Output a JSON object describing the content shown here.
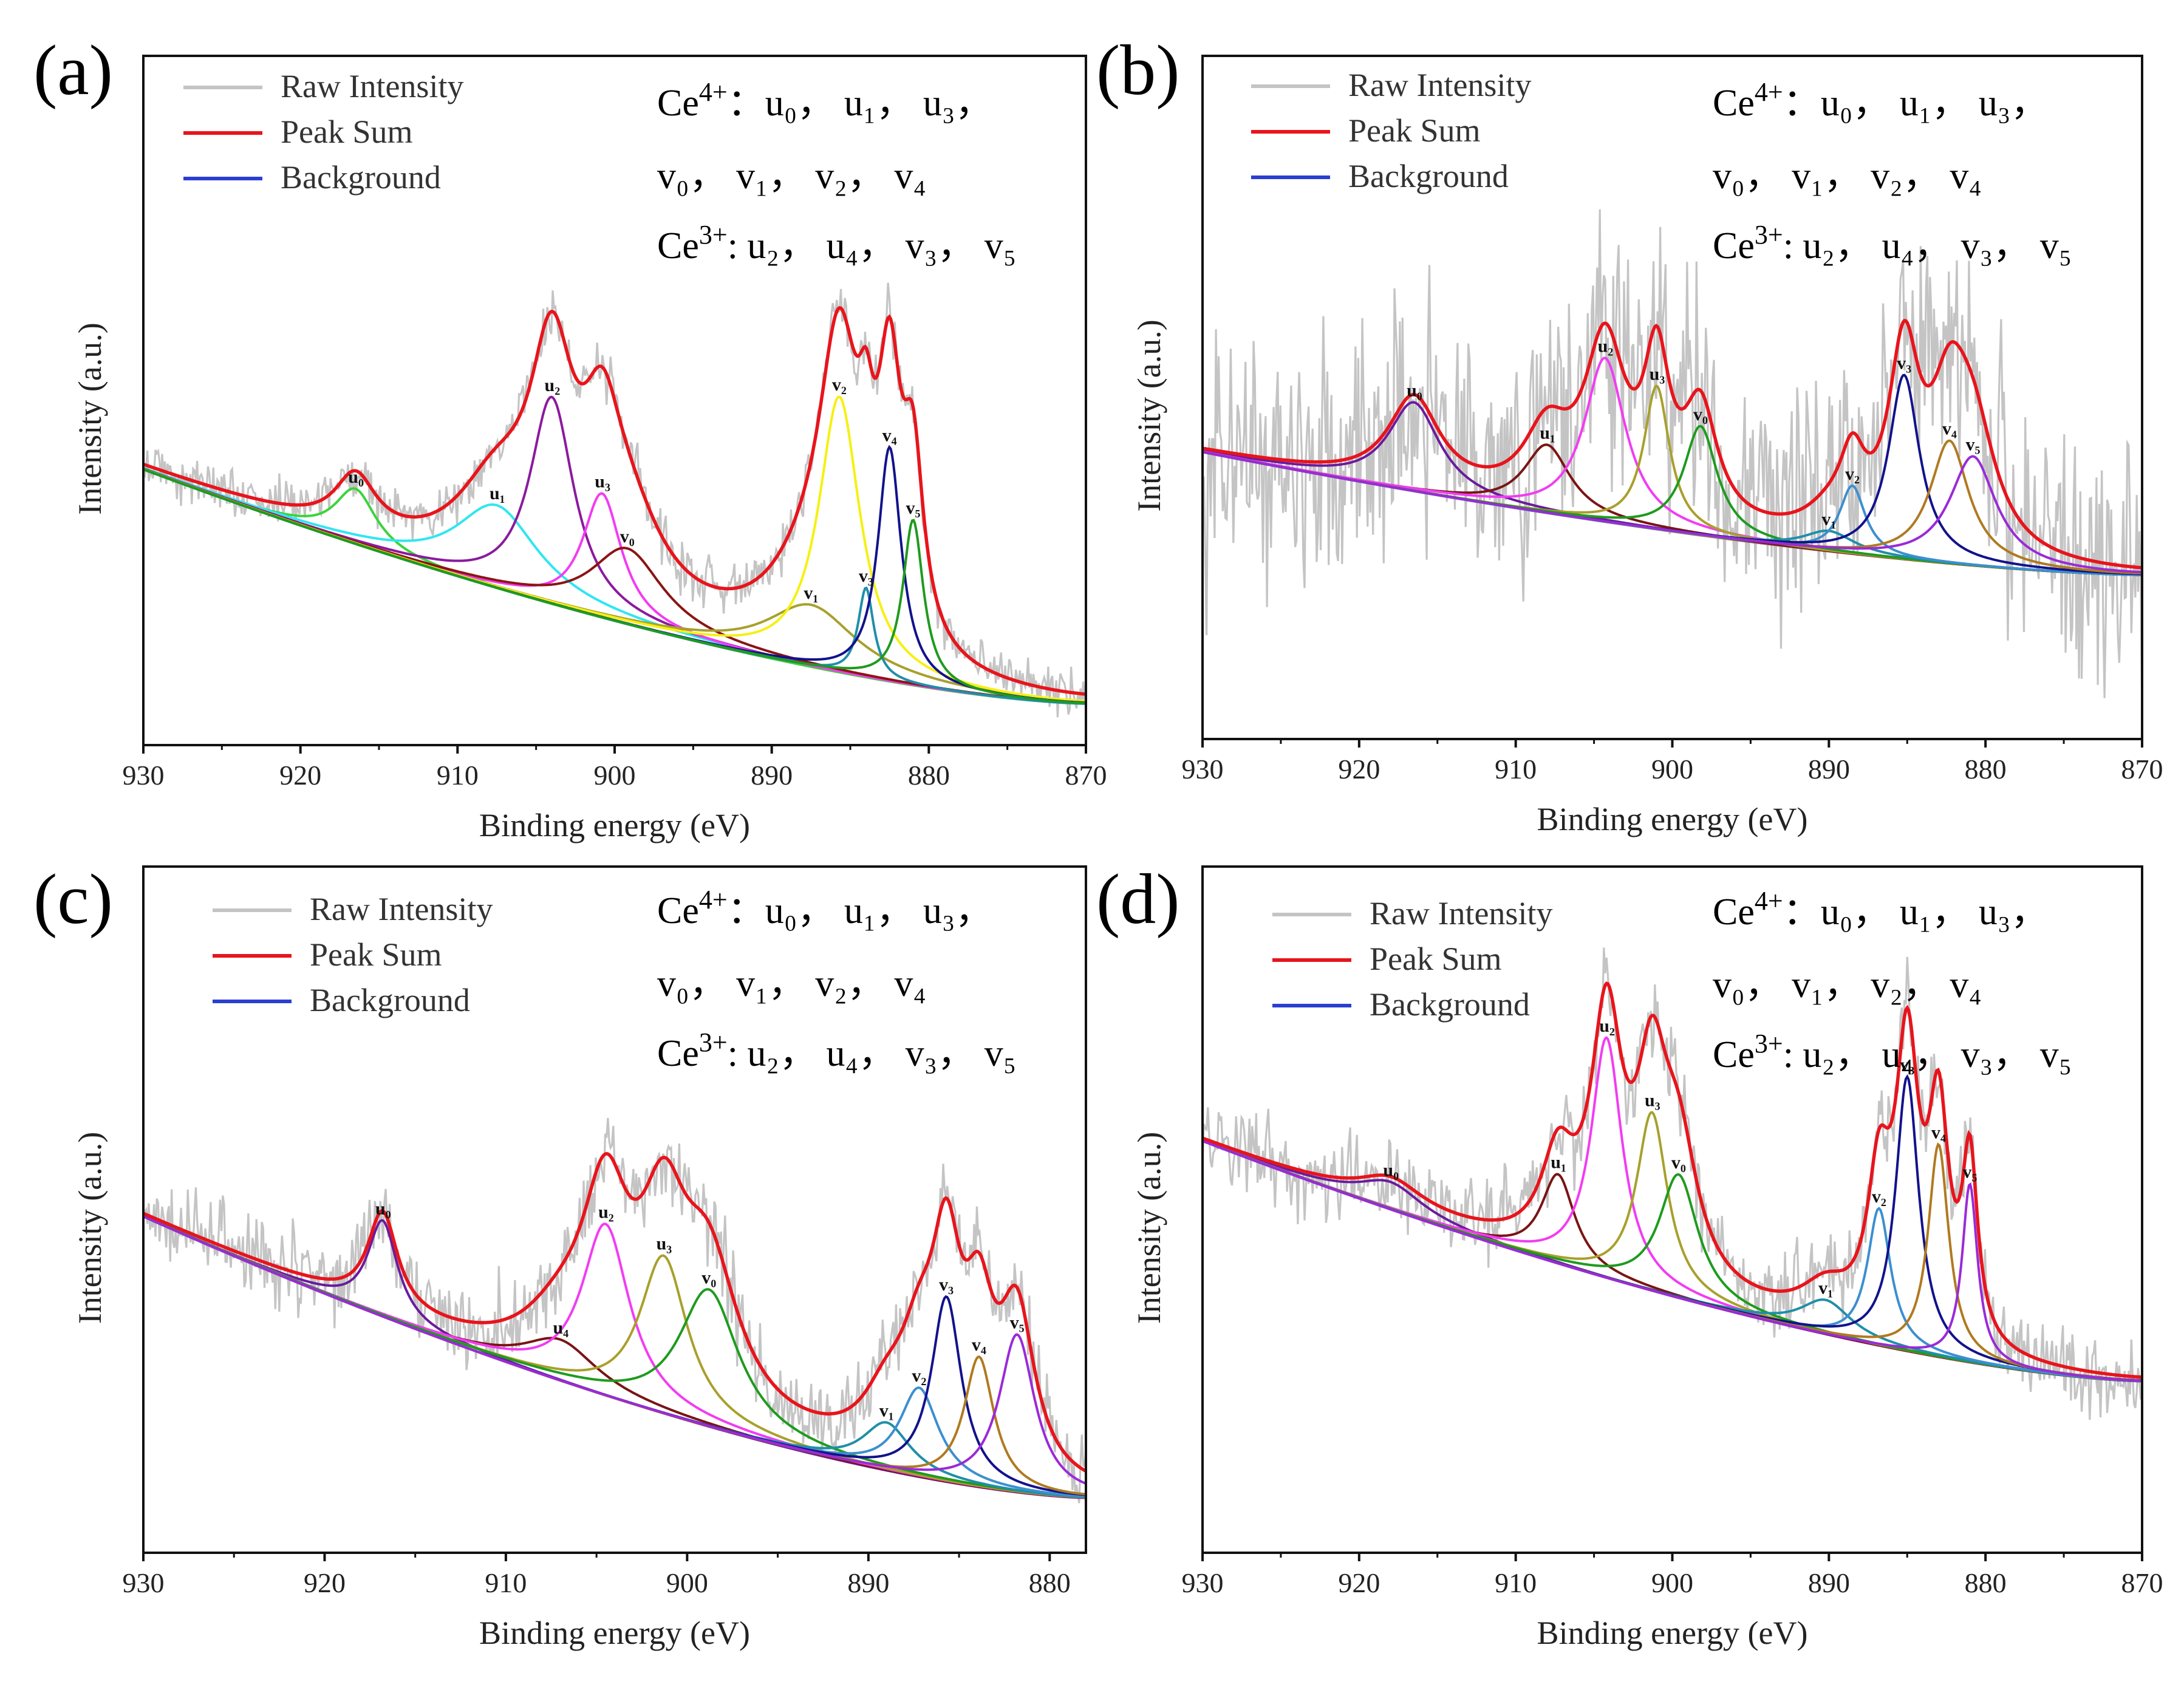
{
  "colors": {
    "raw": "#c4c4c4",
    "peak_sum": "#e8141c",
    "background_legend": "#2a3fd0",
    "background_line": "#a27a3c"
  },
  "chart_data": [
    {
      "type": "line",
      "panel": "(a)",
      "xlabel": "Binding energy (eV)",
      "ylabel": "Intensity (a.u.)",
      "xlim": [
        930,
        870
      ],
      "x_ticks": [
        930,
        920,
        910,
        900,
        890,
        880,
        870
      ],
      "ylim": [
        0,
        1
      ],
      "legend": [
        "Raw Intensity",
        "Peak Sum",
        "Background"
      ],
      "annotation": {
        "ce4_prefix": "Ce",
        "ce4_sup": "4+",
        "ce4_line1": "：u₀， u₁， u₃，",
        "ce4_line2": "v₀， v₁， v₂， v₄",
        "ce3_prefix": "Ce",
        "ce3_sup": "3+",
        "ce3_line": ": u₂， u₄， v₃， v₅"
      },
      "background": {
        "start": 0.4,
        "end": 0.06
      },
      "peaks": [
        {
          "label": "u₀",
          "center": 916.5,
          "height": 0.08,
          "width": 1.6,
          "color": "#3cd33c"
        },
        {
          "label": "u₁",
          "center": 907.5,
          "height": 0.12,
          "width": 3.2,
          "color": "#30e6f0"
        },
        {
          "label": "u₂",
          "center": 904.0,
          "height": 0.3,
          "width": 1.7,
          "color": "#8b1a9e"
        },
        {
          "label": "u₃",
          "center": 900.8,
          "height": 0.18,
          "width": 1.5,
          "color": "#f23cf2"
        },
        {
          "label": "v₀",
          "center": 899.2,
          "height": 0.11,
          "width": 2.8,
          "color": "#8b1414"
        },
        {
          "label": "v₁",
          "center": 887.5,
          "height": 0.09,
          "width": 3.5,
          "color": "#a8a02c"
        },
        {
          "label": "v₂",
          "center": 885.7,
          "height": 0.4,
          "width": 1.6,
          "color": "#f6f012"
        },
        {
          "label": "v₃",
          "center": 884.0,
          "height": 0.13,
          "width": 0.6,
          "color": "#1f8fa8"
        },
        {
          "label": "v₄",
          "center": 882.5,
          "height": 0.34,
          "width": 0.9,
          "color": "#12128c"
        },
        {
          "label": "v₅",
          "center": 881.0,
          "height": 0.24,
          "width": 0.8,
          "color": "#1e9b1e"
        }
      ],
      "noise": 0.035
    },
    {
      "type": "line",
      "panel": "(b)",
      "xlabel": "Binding energy (eV)",
      "ylabel": "Intensity (a.u.)",
      "xlim": [
        930,
        870
      ],
      "x_ticks": [
        930,
        920,
        910,
        900,
        890,
        880,
        870
      ],
      "ylim": [
        0,
        1
      ],
      "legend": [
        "Raw Intensity",
        "Peak Sum",
        "Background"
      ],
      "annotation": {
        "ce4_prefix": "Ce",
        "ce4_sup": "4+",
        "ce4_line1": "：u₀， u₁， u₃，",
        "ce4_line2": "v₀， v₁， v₂， v₄",
        "ce3_prefix": "Ce",
        "ce3_sup": "3+",
        "ce3_line": ": u₂， u₄， v₃， v₅"
      },
      "background": {
        "start": 0.42,
        "end": 0.24
      },
      "peaks": [
        {
          "label": "u₀",
          "center": 916.5,
          "height": 0.13,
          "width": 2.0,
          "color": "#6a1a9e"
        },
        {
          "label": "u₁",
          "center": 908.0,
          "height": 0.1,
          "width": 1.8,
          "color": "#7a1414"
        },
        {
          "label": "u₂",
          "center": 904.3,
          "height": 0.24,
          "width": 1.6,
          "color": "#f23cf2"
        },
        {
          "label": "u₃",
          "center": 901.0,
          "height": 0.21,
          "width": 1.0,
          "color": "#a8a02c"
        },
        {
          "label": "v₀",
          "center": 898.2,
          "height": 0.16,
          "width": 1.3,
          "color": "#1e9b1e"
        },
        {
          "label": "v₁",
          "center": 890.0,
          "height": 0.03,
          "width": 2.0,
          "color": "#1f8fa8"
        },
        {
          "label": "v₂",
          "center": 888.5,
          "height": 0.1,
          "width": 1.0,
          "color": "#3c8fd0"
        },
        {
          "label": "v₃",
          "center": 885.2,
          "height": 0.27,
          "width": 1.2,
          "color": "#12128c"
        },
        {
          "label": "v₄",
          "center": 882.3,
          "height": 0.18,
          "width": 1.5,
          "color": "#b07a20"
        },
        {
          "label": "v₅",
          "center": 880.8,
          "height": 0.16,
          "width": 1.8,
          "color": "#9a2ad8"
        }
      ],
      "noise": 0.17
    },
    {
      "type": "line",
      "panel": "(c)",
      "xlabel": "Binding energy (eV)",
      "ylabel": "Intensity (a.u.)",
      "xlim": [
        930,
        878
      ],
      "x_ticks": [
        930,
        920,
        910,
        900,
        890,
        880
      ],
      "ylim": [
        0,
        1
      ],
      "legend": [
        "Raw Intensity",
        "Peak Sum",
        "Background"
      ],
      "annotation": {
        "ce4_prefix": "Ce",
        "ce4_sup": "4+",
        "ce4_line1": "：u₀， u₁， u₃，",
        "ce4_line2": "v₀， v₁， v₂， v₄",
        "ce3_prefix": "Ce",
        "ce3_sup": "3+",
        "ce3_line": ": u₂， u₄， v₃， v₅"
      },
      "background": {
        "start": 0.49,
        "end": 0.08
      },
      "peaks": [
        {
          "label": "u₀",
          "center": 916.8,
          "height": 0.14,
          "width": 1.0,
          "color": "#6a1a9e"
        },
        {
          "label": "u₄",
          "center": 907.0,
          "height": 0.06,
          "width": 2.5,
          "color": "#7a1414"
        },
        {
          "label": "u₂",
          "center": 904.5,
          "height": 0.25,
          "width": 1.6,
          "color": "#f23cf2"
        },
        {
          "label": "u₃",
          "center": 901.3,
          "height": 0.23,
          "width": 1.6,
          "color": "#a8a02c"
        },
        {
          "label": "v₀",
          "center": 898.8,
          "height": 0.2,
          "width": 2.0,
          "color": "#1e9b1e"
        },
        {
          "label": "v₁",
          "center": 889.0,
          "height": 0.07,
          "width": 1.6,
          "color": "#1f8fa8"
        },
        {
          "label": "v₂",
          "center": 887.2,
          "height": 0.13,
          "width": 1.3,
          "color": "#3c8fd0"
        },
        {
          "label": "v₃",
          "center": 885.7,
          "height": 0.27,
          "width": 1.0,
          "color": "#12128c"
        },
        {
          "label": "v₄",
          "center": 883.9,
          "height": 0.19,
          "width": 1.0,
          "color": "#b07a20"
        },
        {
          "label": "v₅",
          "center": 881.8,
          "height": 0.23,
          "width": 1.2,
          "color": "#9a2ad8"
        }
      ],
      "noise": 0.055
    },
    {
      "type": "line",
      "panel": "(d)",
      "xlabel": "Binding energy (eV)",
      "ylabel": "Intensity (a.u.)",
      "xlim": [
        930,
        870
      ],
      "x_ticks": [
        930,
        920,
        910,
        900,
        890,
        880,
        870
      ],
      "ylim": [
        0,
        1
      ],
      "legend": [
        "Raw Intensity",
        "Peak Sum",
        "Background"
      ],
      "annotation": {
        "ce4_prefix": "Ce",
        "ce4_sup": "4+",
        "ce4_line1": "：u₀， u₁， u₃，",
        "ce4_line2": "v₀， v₁， v₂， v₄",
        "ce3_prefix": "Ce",
        "ce3_sup": "3+",
        "ce3_line": ": u₂， u₄， v₃， v₅"
      },
      "background": {
        "start": 0.6,
        "end": 0.25
      },
      "peaks": [
        {
          "label": "u₀",
          "center": 918.0,
          "height": 0.04,
          "width": 2.5,
          "color": "#6a1a9e"
        },
        {
          "label": "u₁",
          "center": 907.3,
          "height": 0.13,
          "width": 1.3,
          "color": "#7a1414"
        },
        {
          "label": "u₂",
          "center": 904.2,
          "height": 0.35,
          "width": 1.2,
          "color": "#f23cf2"
        },
        {
          "label": "u₃",
          "center": 901.3,
          "height": 0.26,
          "width": 1.2,
          "color": "#a8a02c"
        },
        {
          "label": "v₀",
          "center": 899.6,
          "height": 0.18,
          "width": 1.5,
          "color": "#1e9b1e"
        },
        {
          "label": "v₁",
          "center": 890.2,
          "height": 0.05,
          "width": 2.0,
          "color": "#1f8fa8"
        },
        {
          "label": "v₂",
          "center": 886.8,
          "height": 0.2,
          "width": 0.9,
          "color": "#3c8fd0"
        },
        {
          "label": "v₃",
          "center": 885.0,
          "height": 0.4,
          "width": 0.9,
          "color": "#12128c"
        },
        {
          "label": "v₄",
          "center": 883.0,
          "height": 0.31,
          "width": 0.8,
          "color": "#b07a20"
        },
        {
          "label": "v₅",
          "center": 881.0,
          "height": 0.26,
          "width": 0.6,
          "color": "#9a2ad8"
        }
      ],
      "noise": 0.06
    }
  ]
}
